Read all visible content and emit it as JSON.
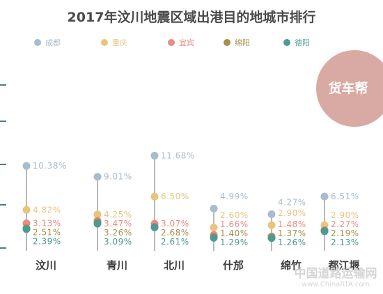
{
  "chart_data": {
    "type": "scatter",
    "title": "2017年汶川地震区域出港目的地城市排行",
    "categories": [
      "汶川",
      "青川",
      "北川",
      "什邡",
      "绵竹",
      "都江堰"
    ],
    "unit": "%",
    "series": [
      {
        "name": "成都",
        "color": "#a9bccb",
        "values": [
          10.38,
          9.01,
          11.68,
          4.99,
          4.27,
          6.51
        ],
        "labels": [
          "10.38%",
          "9.01%",
          "11.68%",
          "4.99%",
          "4.27%",
          "6.51%"
        ]
      },
      {
        "name": "重庆",
        "color": "#e8c47e",
        "values": [
          4.82,
          4.25,
          6.5,
          2.6,
          2.9,
          2.9
        ],
        "labels": [
          "4.82%",
          "4.25%",
          "6.50%",
          "2.60%",
          "2.90%",
          "2.90%"
        ]
      },
      {
        "name": "宜宾",
        "color": "#ec8a86",
        "values": [
          3.13,
          3.47,
          3.07,
          1.66,
          1.48,
          2.27
        ],
        "labels": [
          "3.13%",
          "3.47%",
          "3.07%",
          "1.66%",
          "1.48%",
          "2.27%"
        ]
      },
      {
        "name": "绵阳",
        "color": "#a6904a",
        "values": [
          2.51,
          3.26,
          2.68,
          1.4,
          1.37,
          2.19
        ],
        "labels": [
          "2.51%",
          "3.26%",
          "2.68%",
          "1.40%",
          "1.37%",
          "2.19%"
        ]
      },
      {
        "name": "德阳",
        "color": "#4e9a92",
        "values": [
          2.39,
          3.09,
          2.61,
          1.29,
          1.26,
          2.13
        ],
        "labels": [
          "2.39%",
          "3.09%",
          "2.61%",
          "1.29%",
          "1.26%",
          "2.13%"
        ]
      }
    ],
    "legend": "top",
    "grid": false
  },
  "logo": {
    "text": "货车帮",
    "color": "#d9a9a3"
  },
  "watermark": {
    "main": "中国道路运输网",
    "sub": "www.ChinaRTA.com"
  },
  "colors": {
    "stem": "#8a8a8a",
    "tick": "#5a7684"
  }
}
